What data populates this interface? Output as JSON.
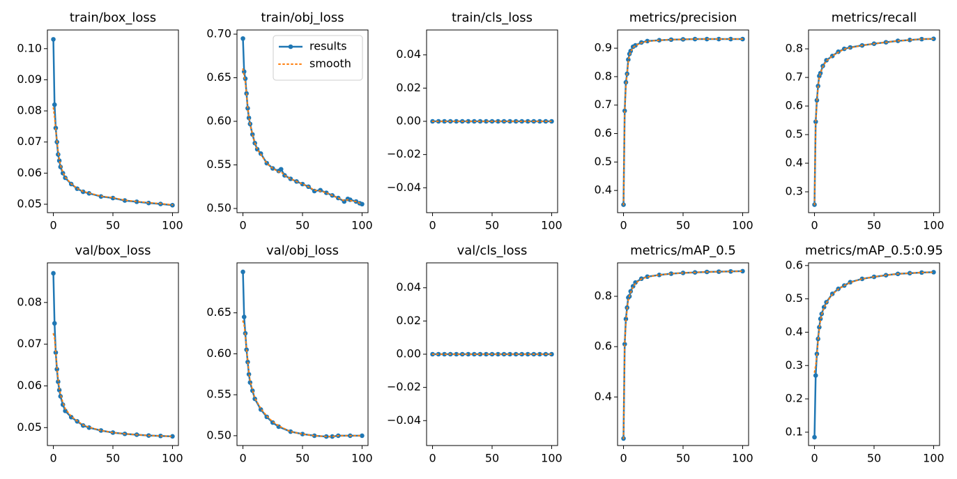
{
  "chart_data": [
    {
      "type": "line",
      "title": "train/box_loss",
      "x": [
        0,
        1,
        2,
        3,
        4,
        5,
        6,
        8,
        10,
        15,
        20,
        25,
        30,
        40,
        50,
        60,
        70,
        80,
        90,
        100
      ],
      "series": [
        {
          "color": "#1f77b4",
          "values": [
            0.103,
            0.082,
            0.0745,
            0.07,
            0.066,
            0.064,
            0.062,
            0.06,
            0.0585,
            0.0565,
            0.055,
            0.054,
            0.0535,
            0.0525,
            0.052,
            0.0512,
            0.0508,
            0.0504,
            0.0501,
            0.0497
          ]
        },
        {
          "color": "#ff7f0e",
          "values": [
            0.081,
            0.078,
            0.074,
            0.0705,
            0.067,
            0.0645,
            0.0625,
            0.0603,
            0.0587,
            0.0566,
            0.0551,
            0.0541,
            0.0536,
            0.0526,
            0.0521,
            0.0513,
            0.0509,
            0.0505,
            0.0502,
            0.0498
          ]
        }
      ],
      "xlim": [
        -5,
        105
      ],
      "xticks": [
        0,
        50,
        100
      ],
      "ylim": [
        0.0473,
        0.106
      ],
      "yticks": [
        {
          "value": 0.05,
          "label": "0.05"
        },
        {
          "value": 0.06,
          "label": "0.06"
        },
        {
          "value": 0.07,
          "label": "0.07"
        },
        {
          "value": 0.08,
          "label": "0.08"
        },
        {
          "value": 0.09,
          "label": "0.09"
        },
        {
          "value": 0.1,
          "label": "0.10"
        }
      ]
    },
    {
      "type": "line",
      "title": "train/obj_loss",
      "x": [
        0,
        1,
        2,
        3,
        4,
        5,
        6,
        8,
        10,
        12,
        15,
        20,
        25,
        30,
        32,
        35,
        40,
        45,
        50,
        55,
        60,
        65,
        70,
        75,
        80,
        85,
        88,
        90,
        95,
        98,
        100
      ],
      "series": [
        {
          "name": "results",
          "color": "#1f77b4",
          "values": [
            0.695,
            0.657,
            0.649,
            0.632,
            0.615,
            0.604,
            0.597,
            0.585,
            0.575,
            0.568,
            0.563,
            0.552,
            0.546,
            0.543,
            0.545,
            0.538,
            0.534,
            0.531,
            0.528,
            0.525,
            0.52,
            0.521,
            0.518,
            0.515,
            0.512,
            0.508,
            0.511,
            0.51,
            0.508,
            0.506,
            0.505
          ]
        },
        {
          "name": "smooth",
          "color": "#ff7f0e",
          "values": [
            0.66,
            0.652,
            0.645,
            0.632,
            0.616,
            0.605,
            0.597,
            0.585,
            0.575,
            0.568,
            0.562,
            0.552,
            0.546,
            0.542,
            0.542,
            0.538,
            0.534,
            0.531,
            0.528,
            0.525,
            0.521,
            0.52,
            0.518,
            0.515,
            0.512,
            0.509,
            0.51,
            0.509,
            0.508,
            0.506,
            0.505
          ]
        }
      ],
      "legend": "upper right",
      "xlim": [
        -5,
        105
      ],
      "xticks": [
        0,
        50,
        100
      ],
      "ylim": [
        0.4952,
        0.7048
      ],
      "yticks": [
        {
          "value": 0.5,
          "label": "0.50"
        },
        {
          "value": 0.55,
          "label": "0.55"
        },
        {
          "value": 0.6,
          "label": "0.60"
        },
        {
          "value": 0.65,
          "label": "0.65"
        },
        {
          "value": 0.7,
          "label": "0.70"
        }
      ]
    },
    {
      "type": "line",
      "title": "train/cls_loss",
      "x": [
        0,
        5,
        10,
        15,
        20,
        25,
        30,
        35,
        40,
        45,
        50,
        55,
        60,
        65,
        70,
        75,
        80,
        85,
        90,
        95,
        100
      ],
      "series": [
        {
          "color": "#1f77b4",
          "values": [
            0,
            0,
            0,
            0,
            0,
            0,
            0,
            0,
            0,
            0,
            0,
            0,
            0,
            0,
            0,
            0,
            0,
            0,
            0,
            0,
            0
          ]
        },
        {
          "color": "#ff7f0e",
          "values": [
            0,
            0,
            0,
            0,
            0,
            0,
            0,
            0,
            0,
            0,
            0,
            0,
            0,
            0,
            0,
            0,
            0,
            0,
            0,
            0,
            0
          ]
        }
      ],
      "xlim": [
        -5,
        105
      ],
      "xticks": [
        0,
        50,
        100
      ],
      "ylim": [
        -0.055,
        0.055
      ],
      "yticks": [
        {
          "value": -0.04,
          "label": "−0.04"
        },
        {
          "value": -0.02,
          "label": "−0.02"
        },
        {
          "value": 0,
          "label": "0.00"
        },
        {
          "value": 0.02,
          "label": "0.02"
        },
        {
          "value": 0.04,
          "label": "0.04"
        }
      ]
    },
    {
      "type": "line",
      "title": "metrics/precision",
      "x": [
        0,
        1,
        2,
        3,
        4,
        5,
        6,
        8,
        10,
        15,
        20,
        30,
        40,
        50,
        60,
        70,
        80,
        90,
        100
      ],
      "series": [
        {
          "color": "#1f77b4",
          "values": [
            0.35,
            0.68,
            0.78,
            0.81,
            0.86,
            0.88,
            0.89,
            0.905,
            0.91,
            0.92,
            0.925,
            0.928,
            0.93,
            0.931,
            0.932,
            0.932,
            0.932,
            0.932,
            0.932
          ]
        },
        {
          "color": "#ff7f0e",
          "values": [
            0.35,
            0.68,
            0.77,
            0.81,
            0.85,
            0.875,
            0.888,
            0.902,
            0.909,
            0.919,
            0.924,
            0.928,
            0.93,
            0.931,
            0.932,
            0.932,
            0.932,
            0.932,
            0.932
          ]
        }
      ],
      "xlim": [
        -5,
        105
      ],
      "xticks": [
        0,
        50,
        100
      ],
      "ylim": [
        0.322,
        0.964
      ],
      "yticks": [
        {
          "value": 0.4,
          "label": "0.4"
        },
        {
          "value": 0.5,
          "label": "0.5"
        },
        {
          "value": 0.6,
          "label": "0.6"
        },
        {
          "value": 0.7,
          "label": "0.7"
        },
        {
          "value": 0.8,
          "label": "0.8"
        },
        {
          "value": 0.9,
          "label": "0.9"
        }
      ]
    },
    {
      "type": "line",
      "title": "metrics/recall",
      "x": [
        0,
        1,
        2,
        3,
        4,
        5,
        7,
        10,
        15,
        20,
        25,
        30,
        40,
        50,
        60,
        70,
        80,
        90,
        100
      ],
      "series": [
        {
          "color": "#1f77b4",
          "values": [
            0.255,
            0.545,
            0.62,
            0.67,
            0.705,
            0.715,
            0.74,
            0.76,
            0.775,
            0.79,
            0.8,
            0.805,
            0.812,
            0.818,
            0.823,
            0.828,
            0.831,
            0.834,
            0.835
          ]
        },
        {
          "color": "#ff7f0e",
          "values": [
            0.255,
            0.545,
            0.615,
            0.665,
            0.7,
            0.715,
            0.738,
            0.758,
            0.775,
            0.788,
            0.799,
            0.804,
            0.812,
            0.818,
            0.823,
            0.828,
            0.831,
            0.834,
            0.835
          ]
        }
      ],
      "xlim": [
        -5,
        105
      ],
      "xticks": [
        0,
        50,
        100
      ],
      "ylim": [
        0.227,
        0.866
      ],
      "yticks": [
        {
          "value": 0.3,
          "label": "0.3"
        },
        {
          "value": 0.4,
          "label": "0.4"
        },
        {
          "value": 0.5,
          "label": "0.5"
        },
        {
          "value": 0.6,
          "label": "0.6"
        },
        {
          "value": 0.7,
          "label": "0.7"
        },
        {
          "value": 0.8,
          "label": "0.8"
        }
      ]
    },
    {
      "type": "line",
      "title": "val/box_loss",
      "x": [
        0,
        1,
        2,
        3,
        4,
        5,
        6,
        8,
        10,
        15,
        20,
        25,
        30,
        40,
        50,
        60,
        70,
        80,
        90,
        100
      ],
      "series": [
        {
          "color": "#1f77b4",
          "values": [
            0.087,
            0.075,
            0.068,
            0.064,
            0.061,
            0.059,
            0.0575,
            0.0555,
            0.054,
            0.0525,
            0.0515,
            0.0505,
            0.05,
            0.0493,
            0.0488,
            0.0485,
            0.0483,
            0.0481,
            0.048,
            0.0479
          ]
        },
        {
          "color": "#ff7f0e",
          "values": [
            0.0725,
            0.0715,
            0.068,
            0.0645,
            0.0615,
            0.0595,
            0.058,
            0.056,
            0.0545,
            0.0527,
            0.0516,
            0.0506,
            0.0501,
            0.0493,
            0.0488,
            0.0485,
            0.0483,
            0.0481,
            0.048,
            0.0479
          ]
        }
      ],
      "xlim": [
        -5,
        105
      ],
      "xticks": [
        0,
        50,
        100
      ],
      "ylim": [
        0.0457,
        0.0895
      ],
      "yticks": [
        {
          "value": 0.05,
          "label": "0.05"
        },
        {
          "value": 0.06,
          "label": "0.06"
        },
        {
          "value": 0.07,
          "label": "0.07"
        },
        {
          "value": 0.08,
          "label": "0.08"
        }
      ]
    },
    {
      "type": "line",
      "title": "val/obj_loss",
      "x": [
        0,
        1,
        2,
        3,
        4,
        5,
        6,
        8,
        10,
        15,
        20,
        25,
        30,
        40,
        50,
        60,
        70,
        75,
        80,
        90,
        100
      ],
      "series": [
        {
          "color": "#1f77b4",
          "values": [
            0.7,
            0.645,
            0.625,
            0.605,
            0.59,
            0.575,
            0.565,
            0.555,
            0.545,
            0.532,
            0.523,
            0.516,
            0.511,
            0.505,
            0.502,
            0.5,
            0.499,
            0.499,
            0.5,
            0.5,
            0.5
          ]
        },
        {
          "color": "#ff7f0e",
          "values": [
            0.64,
            0.635,
            0.622,
            0.606,
            0.592,
            0.578,
            0.567,
            0.556,
            0.546,
            0.533,
            0.524,
            0.517,
            0.512,
            0.505,
            0.502,
            0.5,
            0.499,
            0.499,
            0.5,
            0.5,
            0.5
          ]
        }
      ],
      "xlim": [
        -5,
        105
      ],
      "xticks": [
        0,
        50,
        100
      ],
      "ylim": [
        0.488,
        0.711
      ],
      "yticks": [
        {
          "value": 0.5,
          "label": "0.50"
        },
        {
          "value": 0.55,
          "label": "0.55"
        },
        {
          "value": 0.6,
          "label": "0.60"
        },
        {
          "value": 0.65,
          "label": "0.65"
        }
      ]
    },
    {
      "type": "line",
      "title": "val/cls_loss",
      "x": [
        0,
        5,
        10,
        15,
        20,
        25,
        30,
        35,
        40,
        45,
        50,
        55,
        60,
        65,
        70,
        75,
        80,
        85,
        90,
        95,
        100
      ],
      "series": [
        {
          "color": "#1f77b4",
          "values": [
            0,
            0,
            0,
            0,
            0,
            0,
            0,
            0,
            0,
            0,
            0,
            0,
            0,
            0,
            0,
            0,
            0,
            0,
            0,
            0,
            0
          ]
        },
        {
          "color": "#ff7f0e",
          "values": [
            0,
            0,
            0,
            0,
            0,
            0,
            0,
            0,
            0,
            0,
            0,
            0,
            0,
            0,
            0,
            0,
            0,
            0,
            0,
            0,
            0
          ]
        }
      ],
      "xlim": [
        -5,
        105
      ],
      "xticks": [
        0,
        50,
        100
      ],
      "ylim": [
        -0.055,
        0.055
      ],
      "yticks": [
        {
          "value": -0.04,
          "label": "−0.04"
        },
        {
          "value": -0.02,
          "label": "−0.02"
        },
        {
          "value": 0,
          "label": "0.00"
        },
        {
          "value": 0.02,
          "label": "0.02"
        },
        {
          "value": 0.04,
          "label": "0.04"
        }
      ]
    },
    {
      "type": "line",
      "title": "metrics/mAP_0.5",
      "x": [
        0,
        1,
        2,
        3,
        4,
        5,
        6,
        8,
        10,
        15,
        20,
        30,
        40,
        50,
        60,
        70,
        80,
        90,
        100
      ],
      "series": [
        {
          "color": "#1f77b4",
          "values": [
            0.235,
            0.61,
            0.71,
            0.755,
            0.795,
            0.8,
            0.82,
            0.84,
            0.855,
            0.87,
            0.878,
            0.885,
            0.89,
            0.893,
            0.895,
            0.897,
            0.898,
            0.899,
            0.9
          ]
        },
        {
          "color": "#ff7f0e",
          "values": [
            0.235,
            0.61,
            0.7,
            0.75,
            0.785,
            0.8,
            0.815,
            0.837,
            0.852,
            0.869,
            0.877,
            0.885,
            0.89,
            0.893,
            0.895,
            0.897,
            0.898,
            0.899,
            0.9
          ]
        }
      ],
      "xlim": [
        -5,
        105
      ],
      "xticks": [
        0,
        50,
        100
      ],
      "ylim": [
        0.207,
        0.933
      ],
      "yticks": [
        {
          "value": 0.4,
          "label": "0.4"
        },
        {
          "value": 0.6,
          "label": "0.6"
        },
        {
          "value": 0.8,
          "label": "0.8"
        }
      ]
    },
    {
      "type": "line",
      "title": "metrics/mAP_0.5:0.95",
      "x": [
        0,
        1,
        2,
        3,
        4,
        5,
        6,
        8,
        10,
        15,
        20,
        25,
        30,
        40,
        50,
        60,
        70,
        80,
        90,
        100
      ],
      "series": [
        {
          "color": "#1f77b4",
          "values": [
            0.085,
            0.27,
            0.335,
            0.38,
            0.415,
            0.44,
            0.455,
            0.475,
            0.49,
            0.515,
            0.53,
            0.54,
            0.55,
            0.56,
            0.566,
            0.571,
            0.575,
            0.577,
            0.579,
            0.58
          ]
        },
        {
          "color": "#ff7f0e",
          "values": [
            0.28,
            0.3,
            0.33,
            0.375,
            0.41,
            0.435,
            0.452,
            0.473,
            0.488,
            0.514,
            0.529,
            0.54,
            0.549,
            0.56,
            0.566,
            0.571,
            0.575,
            0.577,
            0.579,
            0.58
          ]
        }
      ],
      "xlim": [
        -5,
        105
      ],
      "xticks": [
        0,
        50,
        100
      ],
      "ylim": [
        0.06,
        0.608
      ],
      "yticks": [
        {
          "value": 0.1,
          "label": "0.1"
        },
        {
          "value": 0.2,
          "label": "0.2"
        },
        {
          "value": 0.3,
          "label": "0.3"
        },
        {
          "value": 0.4,
          "label": "0.4"
        },
        {
          "value": 0.5,
          "label": "0.5"
        },
        {
          "value": 0.6,
          "label": "0.6"
        }
      ]
    }
  ]
}
